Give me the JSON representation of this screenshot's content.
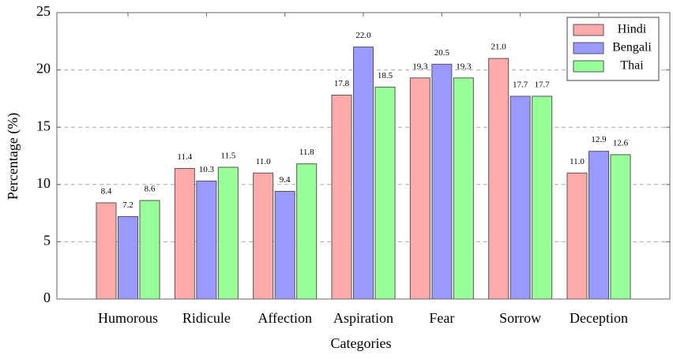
{
  "chart_data": {
    "type": "bar",
    "xlabel": "Categories",
    "ylabel": "Percentage (%)",
    "categories": [
      "Humorous",
      "Ridicule",
      "Affection",
      "Aspiration",
      "Fear",
      "Sorrow",
      "Deception"
    ],
    "series": [
      {
        "name": "Hindi",
        "color": "#ffaaaa",
        "values": [
          8.4,
          11.4,
          11.0,
          17.8,
          19.3,
          21.0,
          11.0
        ],
        "value_labels": [
          "8.4",
          "11.4",
          "11.0",
          "17.8",
          "19.3",
          "21.0",
          "11.0"
        ]
      },
      {
        "name": "Bengali",
        "color": "#9999ff",
        "values": [
          7.2,
          10.3,
          9.4,
          22.0,
          20.5,
          17.7,
          12.9
        ],
        "value_labels": [
          "7.2",
          "10.3",
          "9.4",
          "22.0",
          "20.5",
          "17.7",
          "12.9"
        ]
      },
      {
        "name": "Thai",
        "color": "#99ff99",
        "values": [
          8.6,
          11.5,
          11.8,
          18.5,
          19.3,
          17.7,
          12.6
        ],
        "value_labels": [
          "8.6",
          "11.5",
          "11.8",
          "18.5",
          "19.3",
          "17.7",
          "12.6"
        ]
      }
    ],
    "ylim": [
      0,
      25
    ],
    "yticks": [
      0,
      5,
      10,
      15,
      20,
      25
    ],
    "grid": true,
    "legend": "top-right"
  }
}
